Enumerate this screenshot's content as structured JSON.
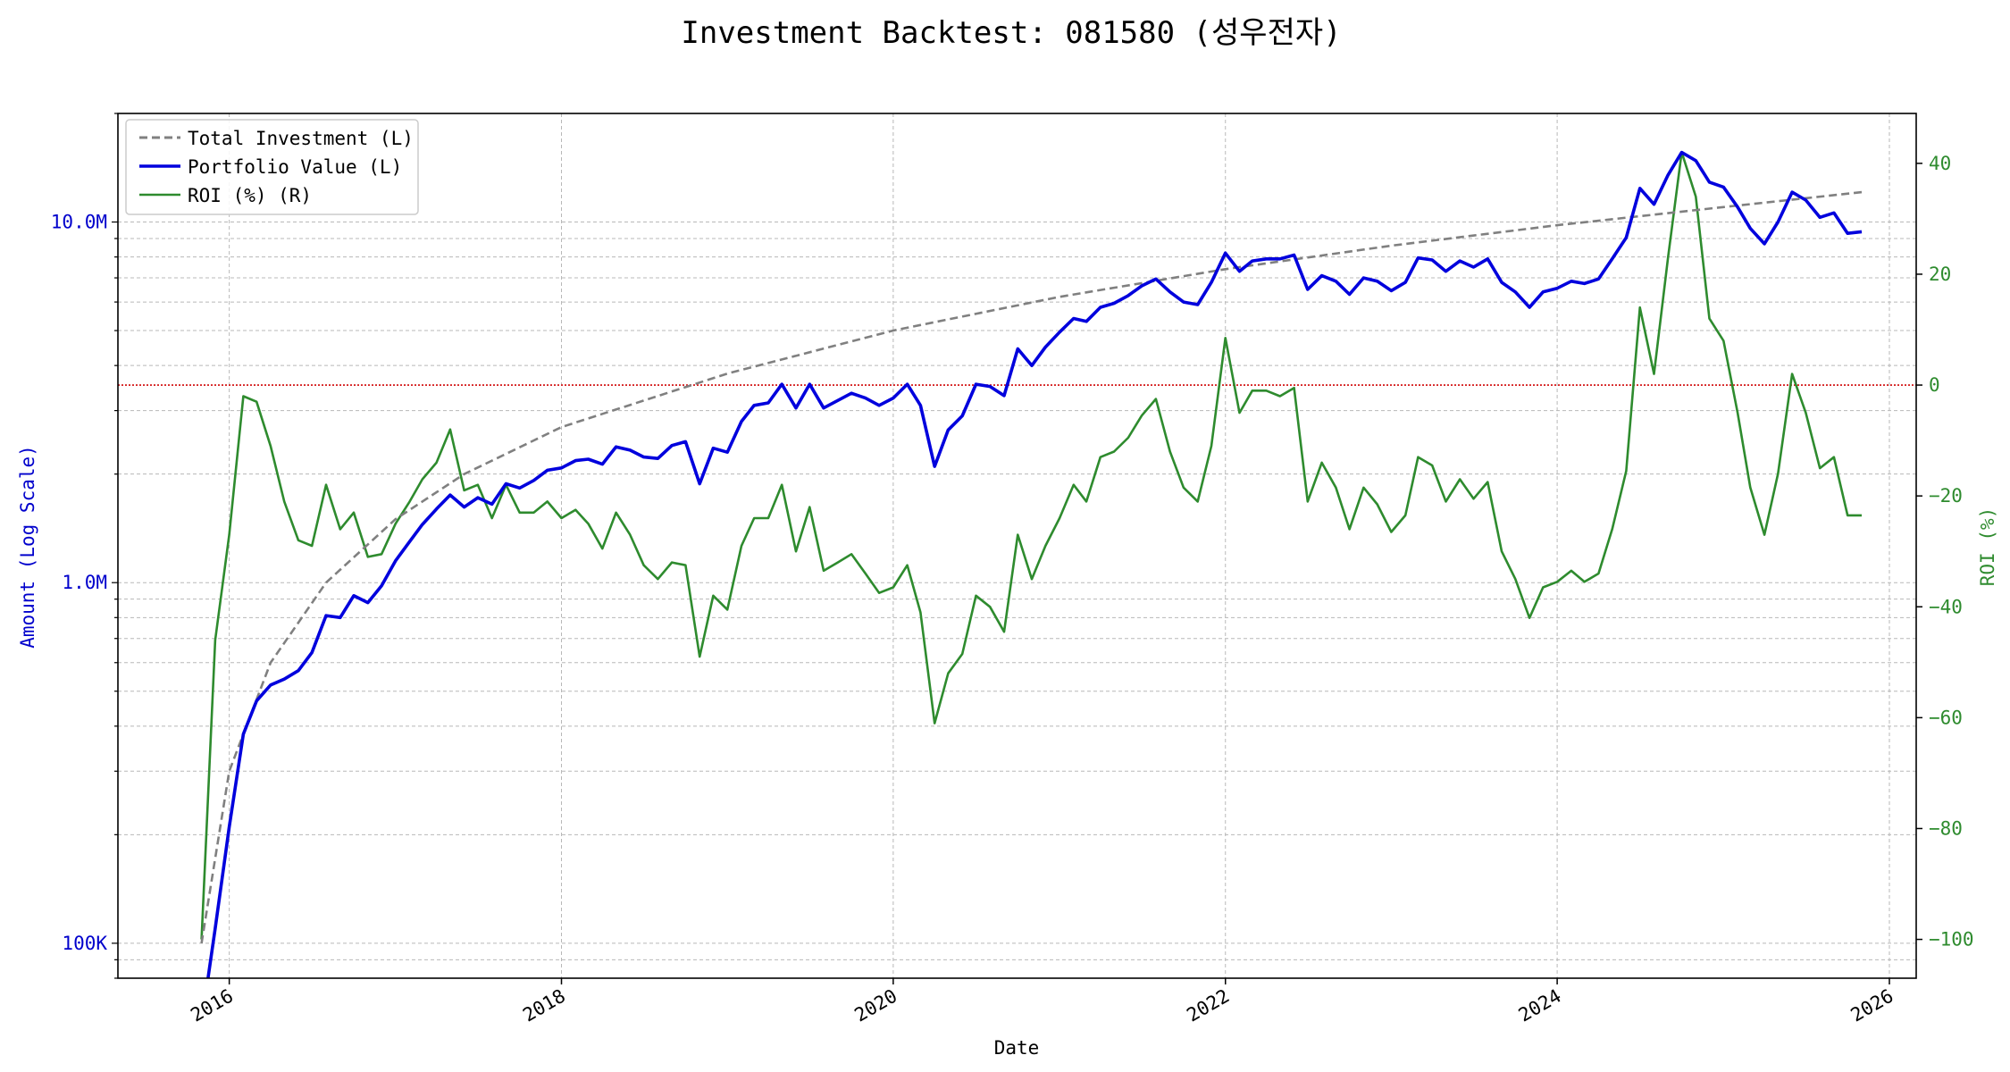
{
  "chart_data": {
    "type": "line",
    "title": "Investment Backtest: 081580 (성우전자)",
    "xlabel": "Date",
    "ylabel_left": "Amount (Log Scale)",
    "ylabel_right": "ROI (%)",
    "left_axis": {
      "scale": "log",
      "range": [
        80000,
        20000000
      ],
      "tick_values": [
        100000,
        1000000,
        10000000
      ],
      "tick_labels": [
        "100K",
        "1.0M",
        "10.0M"
      ]
    },
    "right_axis": {
      "scale": "linear",
      "range": [
        -107,
        49
      ],
      "tick_values": [
        -100,
        -80,
        -60,
        -40,
        -20,
        0,
        20,
        40
      ],
      "tick_labels": [
        "−100",
        "−80",
        "−60",
        "−40",
        "−20",
        "0",
        "20",
        "40"
      ]
    },
    "x_axis": {
      "range": [
        "2015-05-01",
        "2026-03-01"
      ],
      "tick_values": [
        "2016-01-01",
        "2018-01-01",
        "2020-01-01",
        "2022-01-01",
        "2024-01-01",
        "2026-01-01"
      ],
      "tick_labels": [
        "2016",
        "2018",
        "2020",
        "2022",
        "2024",
        "2026"
      ]
    },
    "grid": true,
    "legend_position": "upper-left",
    "reference_line": {
      "axis": "right",
      "value": 0,
      "color": "#d62728",
      "style": "dotted"
    },
    "colors": {
      "total_investment": "#808080",
      "portfolio_value": "#0000dd",
      "roi": "#2e8b2e",
      "left_axis": "#0000cc",
      "right_axis": "#2e8b2e"
    },
    "legend": [
      "Total Investment (L)",
      "Portfolio Value (L)",
      "ROI (%) (R)"
    ],
    "series": [
      {
        "name": "Total Investment (L)",
        "axis": "left",
        "style": "dashed",
        "points": [
          [
            "2015-11-01",
            100000
          ],
          [
            "2016-01-01",
            300000
          ],
          [
            "2016-04-01",
            600000
          ],
          [
            "2016-08-01",
            1000000
          ],
          [
            "2017-01-01",
            1500000
          ],
          [
            "2017-06-01",
            2000000
          ],
          [
            "2018-01-01",
            2700000
          ],
          [
            "2019-01-01",
            3800000
          ],
          [
            "2020-01-01",
            5000000
          ],
          [
            "2021-01-01",
            6200000
          ],
          [
            "2022-01-01",
            7400000
          ],
          [
            "2023-01-01",
            8600000
          ],
          [
            "2024-01-01",
            9800000
          ],
          [
            "2025-01-01",
            11000000
          ],
          [
            "2025-11-01",
            12100000
          ]
        ]
      },
      {
        "name": "Portfolio Value (L)",
        "axis": "left",
        "style": "solid",
        "points": [
          [
            "2015-11-01",
            60000
          ],
          [
            "2015-12-01",
            110000
          ],
          [
            "2016-01-01",
            210000
          ],
          [
            "2016-02-01",
            380000
          ],
          [
            "2016-03-01",
            470000
          ],
          [
            "2016-04-01",
            520000
          ],
          [
            "2016-05-01",
            540000
          ],
          [
            "2016-06-01",
            570000
          ],
          [
            "2016-07-01",
            640000
          ],
          [
            "2016-08-01",
            810000
          ],
          [
            "2016-09-01",
            800000
          ],
          [
            "2016-10-01",
            920000
          ],
          [
            "2016-11-01",
            880000
          ],
          [
            "2016-12-01",
            980000
          ],
          [
            "2017-01-01",
            1150000
          ],
          [
            "2017-02-01",
            1300000
          ],
          [
            "2017-03-01",
            1450000
          ],
          [
            "2017-04-01",
            1600000
          ],
          [
            "2017-05-01",
            1750000
          ],
          [
            "2017-06-01",
            1620000
          ],
          [
            "2017-07-01",
            1720000
          ],
          [
            "2017-08-01",
            1650000
          ],
          [
            "2017-09-01",
            1880000
          ],
          [
            "2017-10-01",
            1830000
          ],
          [
            "2017-11-01",
            1920000
          ],
          [
            "2017-12-01",
            2050000
          ],
          [
            "2018-01-01",
            2080000
          ],
          [
            "2018-02-01",
            2180000
          ],
          [
            "2018-03-01",
            2200000
          ],
          [
            "2018-04-01",
            2130000
          ],
          [
            "2018-05-01",
            2380000
          ],
          [
            "2018-06-01",
            2330000
          ],
          [
            "2018-07-01",
            2230000
          ],
          [
            "2018-08-01",
            2210000
          ],
          [
            "2018-09-01",
            2400000
          ],
          [
            "2018-10-01",
            2460000
          ],
          [
            "2018-11-01",
            1880000
          ],
          [
            "2018-12-01",
            2360000
          ],
          [
            "2019-01-01",
            2300000
          ],
          [
            "2019-02-01",
            2800000
          ],
          [
            "2019-03-01",
            3100000
          ],
          [
            "2019-04-01",
            3150000
          ],
          [
            "2019-05-01",
            3550000
          ],
          [
            "2019-06-01",
            3050000
          ],
          [
            "2019-07-01",
            3550000
          ],
          [
            "2019-08-01",
            3050000
          ],
          [
            "2019-09-01",
            3200000
          ],
          [
            "2019-10-01",
            3350000
          ],
          [
            "2019-11-01",
            3250000
          ],
          [
            "2019-12-01",
            3100000
          ],
          [
            "2020-01-01",
            3250000
          ],
          [
            "2020-02-01",
            3550000
          ],
          [
            "2020-03-01",
            3100000
          ],
          [
            "2020-04-01",
            2100000
          ],
          [
            "2020-05-01",
            2650000
          ],
          [
            "2020-06-01",
            2900000
          ],
          [
            "2020-07-01",
            3550000
          ],
          [
            "2020-08-01",
            3500000
          ],
          [
            "2020-09-01",
            3300000
          ],
          [
            "2020-10-01",
            4450000
          ],
          [
            "2020-11-01",
            4000000
          ],
          [
            "2020-12-01",
            4500000
          ],
          [
            "2021-01-01",
            4950000
          ],
          [
            "2021-02-01",
            5400000
          ],
          [
            "2021-03-01",
            5300000
          ],
          [
            "2021-04-01",
            5800000
          ],
          [
            "2021-05-01",
            5950000
          ],
          [
            "2021-06-01",
            6250000
          ],
          [
            "2021-07-01",
            6650000
          ],
          [
            "2021-08-01",
            6950000
          ],
          [
            "2021-09-01",
            6400000
          ],
          [
            "2021-10-01",
            6000000
          ],
          [
            "2021-11-01",
            5900000
          ],
          [
            "2021-12-01",
            6800000
          ],
          [
            "2022-01-01",
            8200000
          ],
          [
            "2022-02-01",
            7300000
          ],
          [
            "2022-03-01",
            7800000
          ],
          [
            "2022-04-01",
            7900000
          ],
          [
            "2022-05-01",
            7900000
          ],
          [
            "2022-06-01",
            8100000
          ],
          [
            "2022-07-01",
            6500000
          ],
          [
            "2022-08-01",
            7100000
          ],
          [
            "2022-09-01",
            6850000
          ],
          [
            "2022-10-01",
            6300000
          ],
          [
            "2022-11-01",
            7000000
          ],
          [
            "2022-12-01",
            6850000
          ],
          [
            "2023-01-01",
            6450000
          ],
          [
            "2023-02-01",
            6800000
          ],
          [
            "2023-03-01",
            7950000
          ],
          [
            "2023-04-01",
            7850000
          ],
          [
            "2023-05-01",
            7300000
          ],
          [
            "2023-06-01",
            7800000
          ],
          [
            "2023-07-01",
            7500000
          ],
          [
            "2023-08-01",
            7900000
          ],
          [
            "2023-09-01",
            6800000
          ],
          [
            "2023-10-01",
            6400000
          ],
          [
            "2023-11-01",
            5800000
          ],
          [
            "2023-12-01",
            6400000
          ],
          [
            "2024-01-01",
            6550000
          ],
          [
            "2024-02-01",
            6850000
          ],
          [
            "2024-03-01",
            6750000
          ],
          [
            "2024-04-01",
            6950000
          ],
          [
            "2024-05-01",
            7900000
          ],
          [
            "2024-06-01",
            9050000
          ],
          [
            "2024-07-01",
            12400000
          ],
          [
            "2024-08-01",
            11200000
          ],
          [
            "2024-09-01",
            13500000
          ],
          [
            "2024-10-01",
            15600000
          ],
          [
            "2024-11-01",
            14800000
          ],
          [
            "2024-12-01",
            12900000
          ],
          [
            "2025-01-01",
            12500000
          ],
          [
            "2025-02-01",
            11000000
          ],
          [
            "2025-03-01",
            9600000
          ],
          [
            "2025-04-01",
            8700000
          ],
          [
            "2025-05-01",
            10000000
          ],
          [
            "2025-06-01",
            12100000
          ],
          [
            "2025-07-01",
            11500000
          ],
          [
            "2025-08-01",
            10300000
          ],
          [
            "2025-09-01",
            10600000
          ],
          [
            "2025-10-01",
            9300000
          ],
          [
            "2025-11-01",
            9400000
          ]
        ]
      },
      {
        "name": "ROI (%) (R)",
        "axis": "right",
        "style": "solid",
        "points": [
          [
            "2015-11-01",
            -100
          ],
          [
            "2015-12-01",
            -46
          ],
          [
            "2016-01-01",
            -27
          ],
          [
            "2016-02-01",
            -2
          ],
          [
            "2016-03-01",
            -3
          ],
          [
            "2016-04-01",
            -11
          ],
          [
            "2016-05-01",
            -21
          ],
          [
            "2016-06-01",
            -28
          ],
          [
            "2016-07-01",
            -29
          ],
          [
            "2016-08-01",
            -18
          ],
          [
            "2016-09-01",
            -26
          ],
          [
            "2016-10-01",
            -23
          ],
          [
            "2016-11-01",
            -31
          ],
          [
            "2016-12-01",
            -30.5
          ],
          [
            "2017-01-01",
            -25
          ],
          [
            "2017-02-01",
            -21
          ],
          [
            "2017-03-01",
            -17
          ],
          [
            "2017-04-01",
            -14
          ],
          [
            "2017-05-01",
            -8
          ],
          [
            "2017-06-01",
            -19
          ],
          [
            "2017-07-01",
            -18
          ],
          [
            "2017-08-01",
            -24
          ],
          [
            "2017-09-01",
            -18
          ],
          [
            "2017-10-01",
            -23
          ],
          [
            "2017-11-01",
            -23
          ],
          [
            "2017-12-01",
            -21
          ],
          [
            "2018-01-01",
            -24
          ],
          [
            "2018-02-01",
            -22.5
          ],
          [
            "2018-03-01",
            -25
          ],
          [
            "2018-04-01",
            -29.5
          ],
          [
            "2018-05-01",
            -23
          ],
          [
            "2018-06-01",
            -27
          ],
          [
            "2018-07-01",
            -32.5
          ],
          [
            "2018-08-01",
            -35
          ],
          [
            "2018-09-01",
            -32
          ],
          [
            "2018-10-01",
            -32.5
          ],
          [
            "2018-11-01",
            -49
          ],
          [
            "2018-12-01",
            -38
          ],
          [
            "2019-01-01",
            -40.5
          ],
          [
            "2019-02-01",
            -29
          ],
          [
            "2019-03-01",
            -24
          ],
          [
            "2019-04-01",
            -24
          ],
          [
            "2019-05-01",
            -18
          ],
          [
            "2019-06-01",
            -30
          ],
          [
            "2019-07-01",
            -22
          ],
          [
            "2019-08-01",
            -33.5
          ],
          [
            "2019-09-01",
            -32
          ],
          [
            "2019-10-01",
            -30.5
          ],
          [
            "2019-11-01",
            -34
          ],
          [
            "2019-12-01",
            -37.5
          ],
          [
            "2020-01-01",
            -36.5
          ],
          [
            "2020-02-01",
            -32.5
          ],
          [
            "2020-03-01",
            -41
          ],
          [
            "2020-04-01",
            -61
          ],
          [
            "2020-05-01",
            -52
          ],
          [
            "2020-06-01",
            -48.5
          ],
          [
            "2020-07-01",
            -38
          ],
          [
            "2020-08-01",
            -40
          ],
          [
            "2020-09-01",
            -44.5
          ],
          [
            "2020-10-01",
            -27
          ],
          [
            "2020-11-01",
            -35
          ],
          [
            "2020-12-01",
            -29
          ],
          [
            "2021-01-01",
            -24
          ],
          [
            "2021-02-01",
            -18
          ],
          [
            "2021-03-01",
            -21
          ],
          [
            "2021-04-01",
            -13
          ],
          [
            "2021-05-01",
            -12
          ],
          [
            "2021-06-01",
            -9.5
          ],
          [
            "2021-07-01",
            -5.5
          ],
          [
            "2021-08-01",
            -2.5
          ],
          [
            "2021-09-01",
            -12
          ],
          [
            "2021-10-01",
            -18.5
          ],
          [
            "2021-11-01",
            -21
          ],
          [
            "2021-12-01",
            -11
          ],
          [
            "2022-01-01",
            8.5
          ],
          [
            "2022-02-01",
            -5
          ],
          [
            "2022-03-01",
            -1
          ],
          [
            "2022-04-01",
            -1
          ],
          [
            "2022-05-01",
            -2
          ],
          [
            "2022-06-01",
            -0.5
          ],
          [
            "2022-07-01",
            -21
          ],
          [
            "2022-08-01",
            -14
          ],
          [
            "2022-09-01",
            -18.5
          ],
          [
            "2022-10-01",
            -26
          ],
          [
            "2022-11-01",
            -18.5
          ],
          [
            "2022-12-01",
            -21.5
          ],
          [
            "2023-01-01",
            -26.5
          ],
          [
            "2023-02-01",
            -23.5
          ],
          [
            "2023-03-01",
            -13
          ],
          [
            "2023-04-01",
            -14.5
          ],
          [
            "2023-05-01",
            -21
          ],
          [
            "2023-06-01",
            -17
          ],
          [
            "2023-07-01",
            -20.5
          ],
          [
            "2023-08-01",
            -17.5
          ],
          [
            "2023-09-01",
            -30
          ],
          [
            "2023-10-01",
            -35
          ],
          [
            "2023-11-01",
            -42
          ],
          [
            "2023-12-01",
            -36.5
          ],
          [
            "2024-01-01",
            -35.5
          ],
          [
            "2024-02-01",
            -33.5
          ],
          [
            "2024-03-01",
            -35.5
          ],
          [
            "2024-04-01",
            -34
          ],
          [
            "2024-05-01",
            -26
          ],
          [
            "2024-06-01",
            -15.5
          ],
          [
            "2024-07-01",
            14
          ],
          [
            "2024-08-01",
            2
          ],
          [
            "2024-09-01",
            23
          ],
          [
            "2024-10-01",
            42
          ],
          [
            "2024-11-01",
            34
          ],
          [
            "2024-12-01",
            12
          ],
          [
            "2025-01-01",
            8
          ],
          [
            "2025-02-01",
            -5
          ],
          [
            "2025-03-01",
            -18.5
          ],
          [
            "2025-04-01",
            -27
          ],
          [
            "2025-05-01",
            -16
          ],
          [
            "2025-06-01",
            2
          ],
          [
            "2025-07-01",
            -5
          ],
          [
            "2025-08-01",
            -15
          ],
          [
            "2025-09-01",
            -13
          ],
          [
            "2025-10-01",
            -23.5
          ],
          [
            "2025-11-01",
            -23.5
          ]
        ]
      }
    ]
  }
}
